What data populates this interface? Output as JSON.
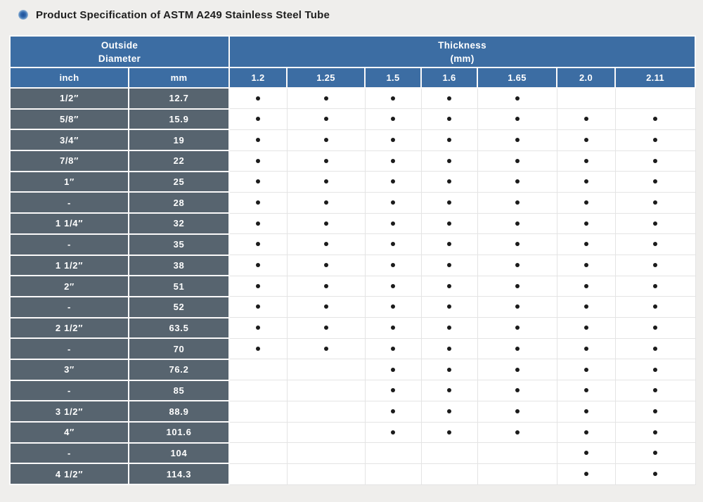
{
  "page": {
    "background": "#efeeec"
  },
  "title": {
    "text": "Product Specification of ASTM A249 Stainless Steel Tube",
    "bullet_icon": "blue-radial-dot"
  },
  "colors": {
    "header_blue": "#3c6da3",
    "row_slate": "#57646f",
    "colored_cell_border": "#fbfafa",
    "data_cell_border": "#e4e4e4",
    "data_cell_bg": "#ffffff",
    "dot": "#1b1b1b",
    "title_text": "#1e1e1e",
    "page_bg": "#efeeec"
  },
  "table": {
    "column_groups": {
      "outside_diameter_lines": [
        "Outside",
        "Diameter"
      ],
      "thickness_lines": [
        "Thickness",
        "(mm)"
      ]
    },
    "unit_headers": {
      "inch": "inch",
      "mm": "mm"
    },
    "thickness_values": [
      "1.2",
      "1.25",
      "1.5",
      "1.6",
      "1.65",
      "2.0",
      "2.11"
    ],
    "rows": [
      {
        "inch": "1/2″",
        "mm": "12.7",
        "dots": [
          1,
          1,
          1,
          1,
          1,
          0,
          0
        ]
      },
      {
        "inch": "5/8″",
        "mm": "15.9",
        "dots": [
          1,
          1,
          1,
          1,
          1,
          1,
          1
        ]
      },
      {
        "inch": "3/4″",
        "mm": "19",
        "dots": [
          1,
          1,
          1,
          1,
          1,
          1,
          1
        ]
      },
      {
        "inch": "7/8″",
        "mm": "22",
        "dots": [
          1,
          1,
          1,
          1,
          1,
          1,
          1
        ]
      },
      {
        "inch": "1″",
        "mm": "25",
        "dots": [
          1,
          1,
          1,
          1,
          1,
          1,
          1
        ]
      },
      {
        "inch": "-",
        "mm": "28",
        "dots": [
          1,
          1,
          1,
          1,
          1,
          1,
          1
        ]
      },
      {
        "inch": "1 1/4″",
        "mm": "32",
        "dots": [
          1,
          1,
          1,
          1,
          1,
          1,
          1
        ]
      },
      {
        "inch": "-",
        "mm": "35",
        "dots": [
          1,
          1,
          1,
          1,
          1,
          1,
          1
        ]
      },
      {
        "inch": "1 1/2″",
        "mm": "38",
        "dots": [
          1,
          1,
          1,
          1,
          1,
          1,
          1
        ]
      },
      {
        "inch": "2″",
        "mm": "51",
        "dots": [
          1,
          1,
          1,
          1,
          1,
          1,
          1
        ]
      },
      {
        "inch": "-",
        "mm": "52",
        "dots": [
          1,
          1,
          1,
          1,
          1,
          1,
          1
        ]
      },
      {
        "inch": "2 1/2″",
        "mm": "63.5",
        "dots": [
          1,
          1,
          1,
          1,
          1,
          1,
          1
        ]
      },
      {
        "inch": "-",
        "mm": "70",
        "dots": [
          1,
          1,
          1,
          1,
          1,
          1,
          1
        ]
      },
      {
        "inch": "3″",
        "mm": "76.2",
        "dots": [
          0,
          0,
          1,
          1,
          1,
          1,
          1
        ]
      },
      {
        "inch": "-",
        "mm": "85",
        "dots": [
          0,
          0,
          1,
          1,
          1,
          1,
          1
        ]
      },
      {
        "inch": "3 1/2″",
        "mm": "88.9",
        "dots": [
          0,
          0,
          1,
          1,
          1,
          1,
          1
        ]
      },
      {
        "inch": "4″",
        "mm": "101.6",
        "dots": [
          0,
          0,
          1,
          1,
          1,
          1,
          1
        ]
      },
      {
        "inch": "-",
        "mm": "104",
        "dots": [
          0,
          0,
          0,
          0,
          0,
          1,
          1
        ]
      },
      {
        "inch": "4 1/2″",
        "mm": "114.3",
        "dots": [
          0,
          0,
          0,
          0,
          0,
          1,
          1
        ]
      }
    ]
  }
}
